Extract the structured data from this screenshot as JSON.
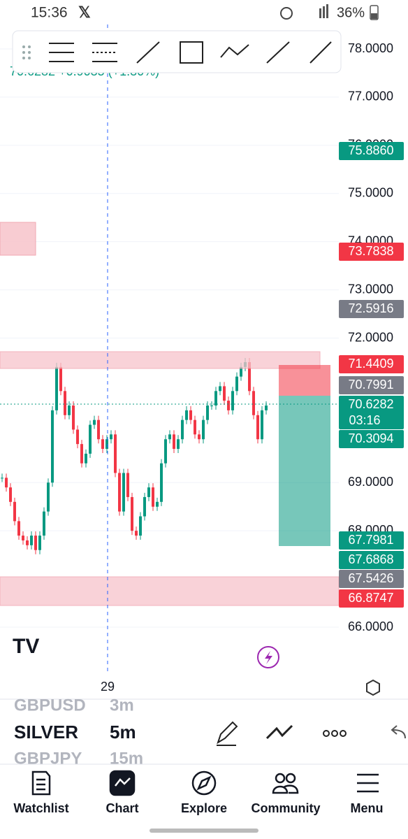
{
  "status_bar": {
    "time": "15:36",
    "battery": "36%"
  },
  "legend": {
    "text": "70.6282 +0.9035 (+1.30%)"
  },
  "chart": {
    "yticks": [
      {
        "value": 78,
        "label": "78.0000"
      },
      {
        "value": 77,
        "label": "77.0000"
      },
      {
        "value": 76,
        "label": "76.0000"
      },
      {
        "value": 75,
        "label": "75.0000"
      },
      {
        "value": 74,
        "label": "74.0000"
      },
      {
        "value": 73,
        "label": "73.0000"
      },
      {
        "value": 72,
        "label": "72.0000"
      },
      {
        "value": 69,
        "label": "69.0000"
      },
      {
        "value": 68,
        "label": "68.0000"
      },
      {
        "value": 66,
        "label": "66.0000"
      }
    ],
    "x_label": "29",
    "up_color": "#089981",
    "down_color": "#f23645",
    "close": [
      69.1,
      68.9,
      68.6,
      68.2,
      67.9,
      67.8,
      67.7,
      67.9,
      67.6,
      67.9,
      68.4,
      69.0,
      70.5,
      71.4,
      70.9,
      70.4,
      70.6,
      70.1,
      69.8,
      69.4,
      69.6,
      70.2,
      70.3,
      69.9,
      69.7,
      69.9,
      70.0,
      69.2,
      68.4,
      69.2,
      68.7,
      68.0,
      67.9,
      68.3,
      68.7,
      68.9,
      68.5,
      68.6,
      69.4,
      69.9,
      70.0,
      69.7,
      69.9,
      70.3,
      70.5,
      70.3,
      70.0,
      69.9,
      70.3,
      70.6,
      70.6,
      70.9,
      71.0,
      70.7,
      70.5,
      70.9,
      71.2,
      71.4,
      71.5,
      70.9,
      70.4,
      69.9,
      70.5,
      70.6
    ],
    "badges": [
      {
        "value": 75.886,
        "label": "75.8860",
        "color": "#089981"
      },
      {
        "value": 73.7838,
        "label": "73.7838",
        "color": "#f23645"
      },
      {
        "value": 72.5916,
        "label": "72.5916",
        "color": "#787b86"
      },
      {
        "value": 71.4409,
        "label": "71.4409",
        "color": "#f23645"
      },
      {
        "value": 70.7991,
        "label": "70.7991",
        "color": "#787b86"
      },
      {
        "value": 70.6282,
        "label": "70.6282",
        "countdown": "03:16",
        "color": "#089981"
      },
      {
        "value": 70.3094,
        "label": "70.3094",
        "color": "#089981"
      },
      {
        "value": 67.7981,
        "label": "67.7981",
        "color": "#089981"
      },
      {
        "value": 67.6868,
        "label": "67.6868",
        "color": "#089981"
      },
      {
        "value": 67.5426,
        "label": "67.5426",
        "color": "#787b86"
      },
      {
        "value": 66.8747,
        "label": "66.8747",
        "color": "#f23645"
      }
    ]
  },
  "symbols": [
    {
      "symbol": "GBPUSD",
      "interval": "3m"
    },
    {
      "symbol": "SILVER",
      "interval": "5m"
    },
    {
      "symbol": "GBPJPY",
      "interval": "15m"
    }
  ],
  "nav": [
    "Watchlist",
    "Chart",
    "Explore",
    "Community",
    "Menu"
  ]
}
